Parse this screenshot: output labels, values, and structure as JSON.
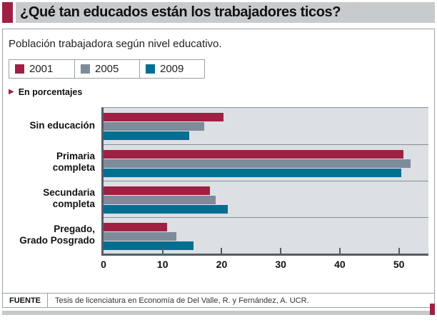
{
  "header": {
    "title": "¿Qué tan educados están los trabajadores ticos?"
  },
  "subtitle": "Población trabajadora según nivel educativo.",
  "unit_note": "En porcentajes",
  "legend": {
    "items": [
      {
        "label": "2001",
        "color": "#9e2144"
      },
      {
        "label": "2005",
        "color": "#7e8b9a"
      },
      {
        "label": "2009",
        "color": "#006f90"
      }
    ]
  },
  "chart_data": {
    "type": "bar",
    "orientation": "horizontal",
    "title": "Población trabajadora según nivel educativo",
    "unit": "porcentajes",
    "categories": [
      "Sin educación",
      "Primaria completa",
      "Secundaria completa",
      "Pregado, Grado Posgrado"
    ],
    "category_label_lines": [
      "Sin educación",
      "Primaria\ncompleta",
      "Secundaria\ncompleta",
      "Pregado,\nGrado Posgrado"
    ],
    "series": [
      {
        "name": "2001",
        "color": "#9e2144",
        "values": [
          20.3,
          50.8,
          18.0,
          10.7
        ]
      },
      {
        "name": "2005",
        "color": "#7e8b9a",
        "values": [
          17.0,
          52.0,
          19.0,
          12.3
        ]
      },
      {
        "name": "2009",
        "color": "#006f90",
        "values": [
          14.5,
          50.4,
          21.0,
          15.2
        ]
      }
    ],
    "x_ticks": [
      0,
      10,
      20,
      30,
      40,
      50
    ],
    "xlim": [
      0,
      55
    ],
    "grid": false,
    "legend_position": "top",
    "plot_background": "#dcdfe3"
  },
  "source": {
    "label": "FUENTE",
    "text": "Tesis de licenciatura en Economía de Del Valle, R. y Fernández, A. UCR."
  }
}
